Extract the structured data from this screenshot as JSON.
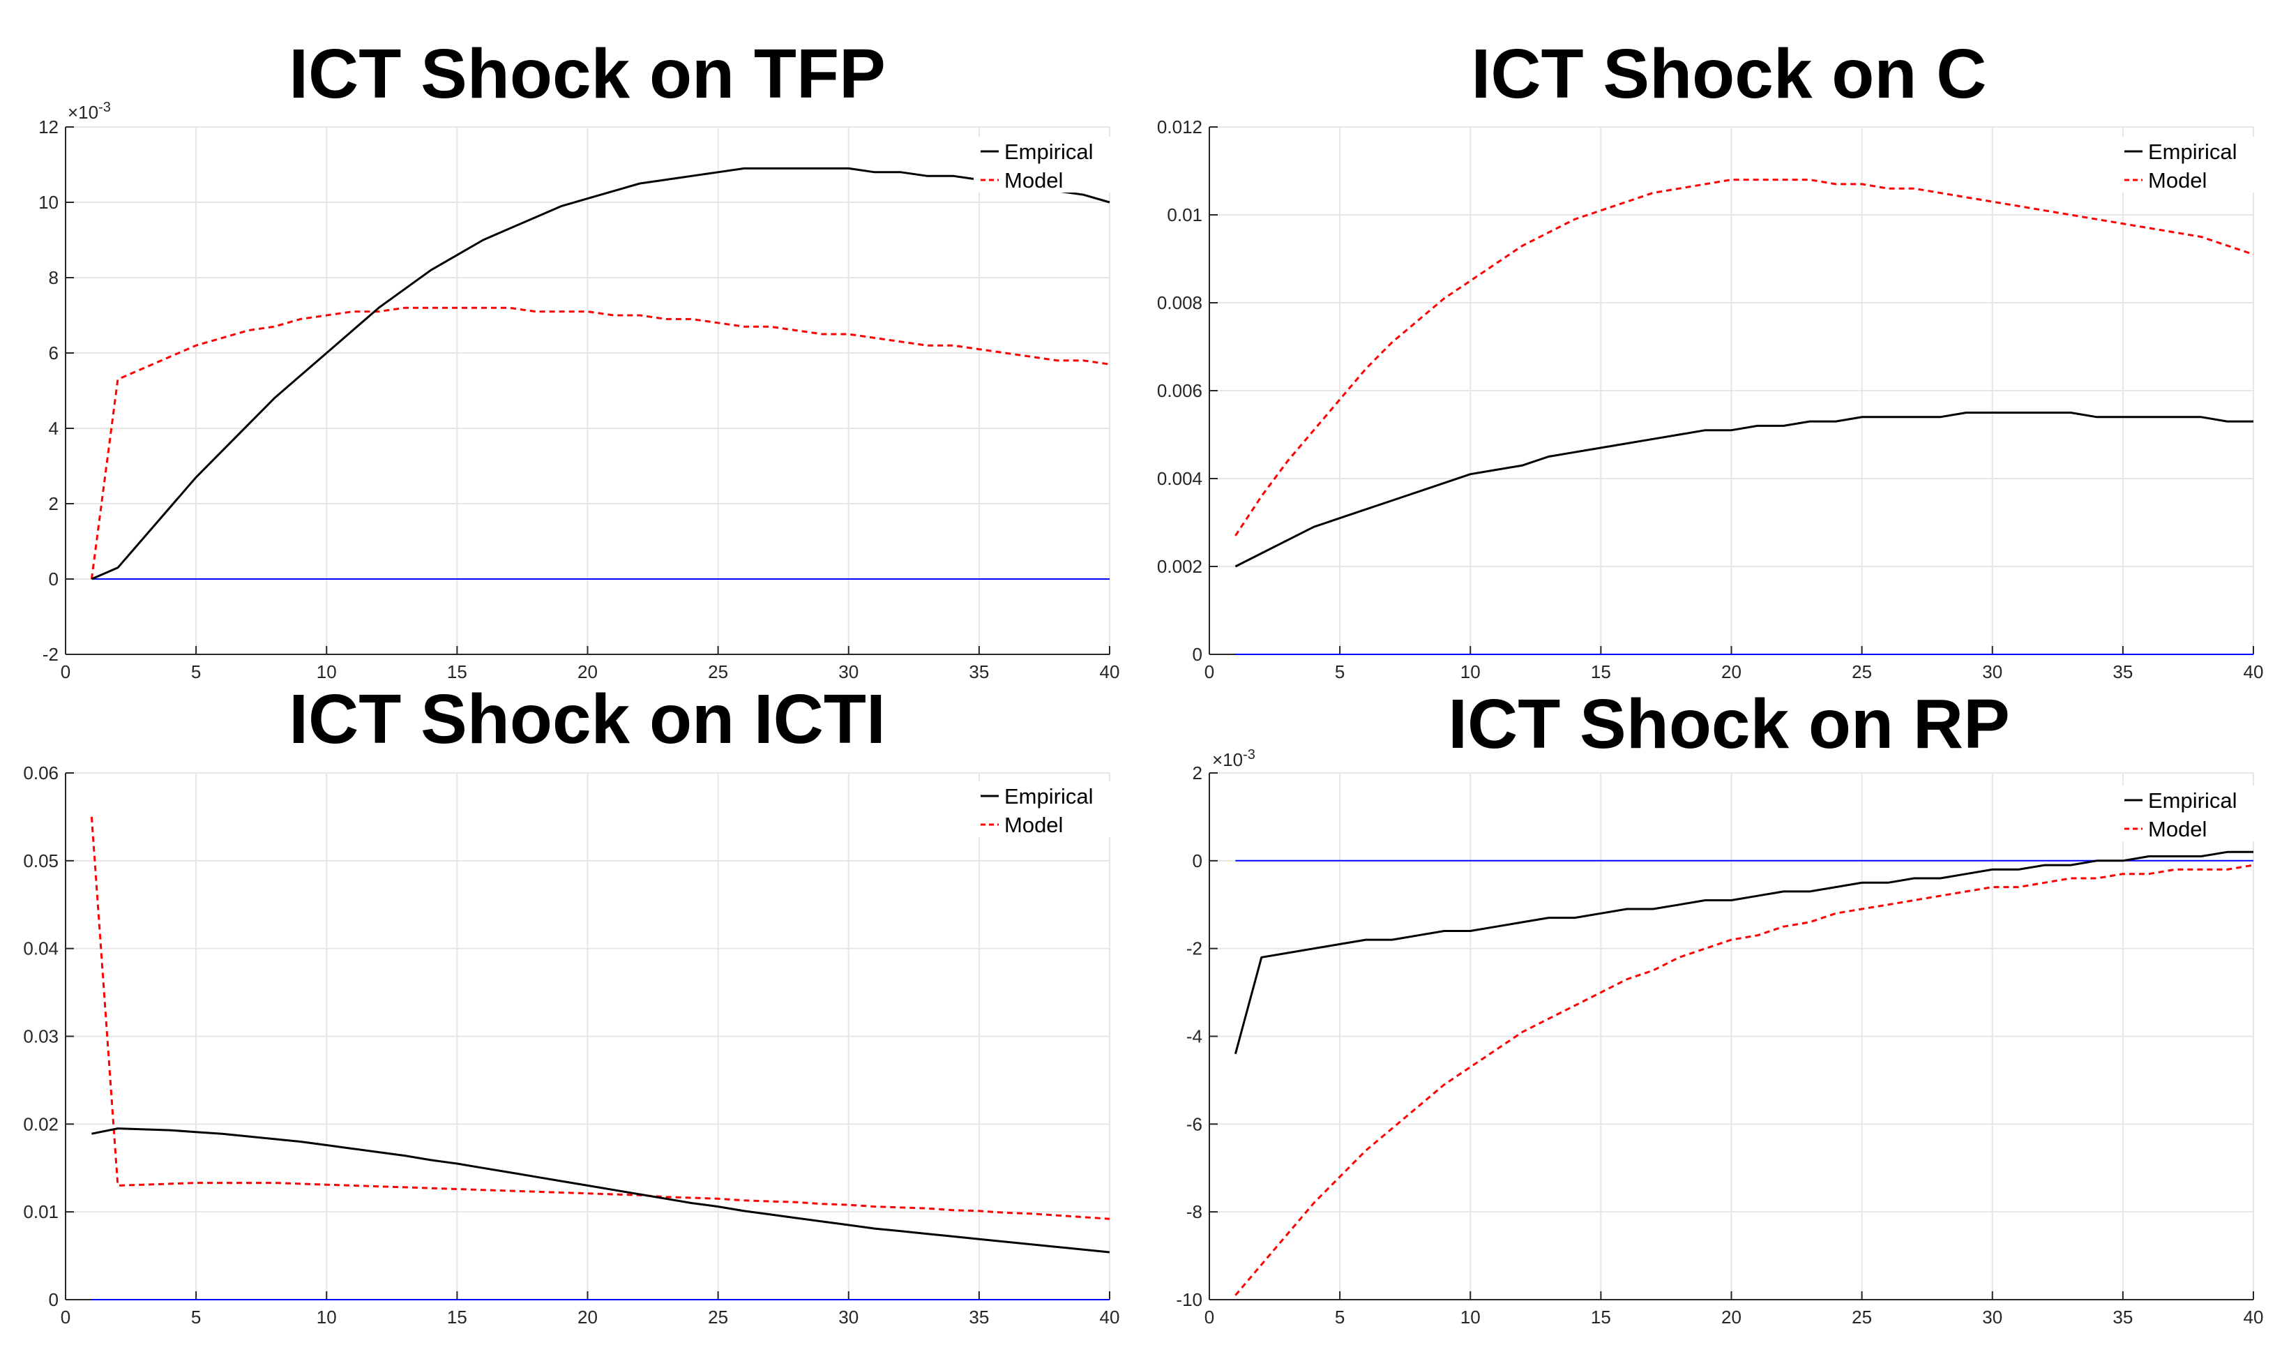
{
  "chart_data": [
    {
      "type": "line",
      "title": "ICT Shock on TFP",
      "xlim": [
        0,
        40
      ],
      "ylim": [
        -0.002,
        0.012
      ],
      "xticks": [
        "0",
        "5",
        "10",
        "15",
        "20",
        "25",
        "30",
        "35",
        "40"
      ],
      "yticks": [
        "-2",
        "0",
        "2",
        "4",
        "6",
        "8",
        "10",
        "12"
      ],
      "y_exponent_label": "×10",
      "y_exponent_power": "-3",
      "grid": true,
      "legend_position": "top-right",
      "series": [
        {
          "name": "Empirical",
          "color": "#000000",
          "style": "solid",
          "x": [
            1,
            2,
            3,
            4,
            5,
            6,
            7,
            8,
            9,
            10,
            11,
            12,
            13,
            14,
            15,
            16,
            17,
            18,
            19,
            20,
            21,
            22,
            23,
            24,
            25,
            26,
            27,
            28,
            29,
            30,
            31,
            32,
            33,
            34,
            35,
            36,
            37,
            38,
            39,
            40
          ],
          "y": [
            0.0,
            0.0003,
            0.0011,
            0.0019,
            0.0027,
            0.0034,
            0.0041,
            0.0048,
            0.0054,
            0.006,
            0.0066,
            0.0072,
            0.0077,
            0.0082,
            0.0086,
            0.009,
            0.0093,
            0.0096,
            0.0099,
            0.0101,
            0.0103,
            0.0105,
            0.0106,
            0.0107,
            0.0108,
            0.0109,
            0.0109,
            0.0109,
            0.0109,
            0.0109,
            0.0108,
            0.0108,
            0.0107,
            0.0107,
            0.0106,
            0.0105,
            0.0104,
            0.0103,
            0.0102,
            0.01
          ]
        },
        {
          "name": "Model",
          "color": "#ff0000",
          "style": "dashed",
          "x": [
            1,
            2,
            3,
            4,
            5,
            6,
            7,
            8,
            9,
            10,
            11,
            12,
            13,
            14,
            15,
            16,
            17,
            18,
            19,
            20,
            21,
            22,
            23,
            24,
            25,
            26,
            27,
            28,
            29,
            30,
            31,
            32,
            33,
            34,
            35,
            36,
            37,
            38,
            39,
            40
          ],
          "y": [
            0.0,
            0.0053,
            0.0056,
            0.0059,
            0.0062,
            0.0064,
            0.0066,
            0.0067,
            0.0069,
            0.007,
            0.0071,
            0.0071,
            0.0072,
            0.0072,
            0.0072,
            0.0072,
            0.0072,
            0.0071,
            0.0071,
            0.0071,
            0.007,
            0.007,
            0.0069,
            0.0069,
            0.0068,
            0.0067,
            0.0067,
            0.0066,
            0.0065,
            0.0065,
            0.0064,
            0.0063,
            0.0062,
            0.0062,
            0.0061,
            0.006,
            0.0059,
            0.0058,
            0.0058,
            0.0057
          ]
        },
        {
          "name": "",
          "color": "#0000ff",
          "style": "solid",
          "x": [
            1,
            40
          ],
          "y": [
            0,
            0
          ]
        }
      ]
    },
    {
      "type": "line",
      "title": "ICT Shock on C",
      "xlim": [
        0,
        40
      ],
      "ylim": [
        0,
        0.012
      ],
      "xticks": [
        "0",
        "5",
        "10",
        "15",
        "20",
        "25",
        "30",
        "35",
        "40"
      ],
      "yticks": [
        "0",
        "0.002",
        "0.004",
        "0.006",
        "0.008",
        "0.01",
        "0.012"
      ],
      "grid": true,
      "legend_position": "top-right",
      "series": [
        {
          "name": "Empirical",
          "color": "#000000",
          "style": "solid",
          "x": [
            1,
            2,
            3,
            4,
            5,
            6,
            7,
            8,
            9,
            10,
            11,
            12,
            13,
            14,
            15,
            16,
            17,
            18,
            19,
            20,
            21,
            22,
            23,
            24,
            25,
            26,
            27,
            28,
            29,
            30,
            31,
            32,
            33,
            34,
            35,
            36,
            37,
            38,
            39,
            40
          ],
          "y": [
            0.002,
            0.0023,
            0.0026,
            0.0029,
            0.0031,
            0.0033,
            0.0035,
            0.0037,
            0.0039,
            0.0041,
            0.0042,
            0.0043,
            0.0045,
            0.0046,
            0.0047,
            0.0048,
            0.0049,
            0.005,
            0.0051,
            0.0051,
            0.0052,
            0.0052,
            0.0053,
            0.0053,
            0.0054,
            0.0054,
            0.0054,
            0.0054,
            0.0055,
            0.0055,
            0.0055,
            0.0055,
            0.0055,
            0.0054,
            0.0054,
            0.0054,
            0.0054,
            0.0054,
            0.0053,
            0.0053
          ]
        },
        {
          "name": "Model",
          "color": "#ff0000",
          "style": "dashed",
          "x": [
            1,
            2,
            3,
            4,
            5,
            6,
            7,
            8,
            9,
            10,
            11,
            12,
            13,
            14,
            15,
            16,
            17,
            18,
            19,
            20,
            21,
            22,
            23,
            24,
            25,
            26,
            27,
            28,
            29,
            30,
            31,
            32,
            33,
            34,
            35,
            36,
            37,
            38,
            39,
            40
          ],
          "y": [
            0.0027,
            0.0036,
            0.0044,
            0.0051,
            0.0058,
            0.0065,
            0.0071,
            0.0076,
            0.0081,
            0.0085,
            0.0089,
            0.0093,
            0.0096,
            0.0099,
            0.0101,
            0.0103,
            0.0105,
            0.0106,
            0.0107,
            0.0108,
            0.0108,
            0.0108,
            0.0108,
            0.0107,
            0.0107,
            0.0106,
            0.0106,
            0.0105,
            0.0104,
            0.0103,
            0.0102,
            0.0101,
            0.01,
            0.0099,
            0.0098,
            0.0097,
            0.0096,
            0.0095,
            0.0093,
            0.0091
          ]
        },
        {
          "name": "",
          "color": "#0000ff",
          "style": "solid",
          "x": [
            1,
            40
          ],
          "y": [
            0,
            0
          ]
        }
      ]
    },
    {
      "type": "line",
      "title": "ICT Shock on ICTI",
      "xlim": [
        0,
        40
      ],
      "ylim": [
        0,
        0.06
      ],
      "xticks": [
        "0",
        "5",
        "10",
        "15",
        "20",
        "25",
        "30",
        "35",
        "40"
      ],
      "yticks": [
        "0",
        "0.01",
        "0.02",
        "0.03",
        "0.04",
        "0.05",
        "0.06"
      ],
      "grid": true,
      "legend_position": "top-right",
      "series": [
        {
          "name": "Empirical",
          "color": "#000000",
          "style": "solid",
          "x": [
            1,
            2,
            3,
            4,
            5,
            6,
            7,
            8,
            9,
            10,
            11,
            12,
            13,
            14,
            15,
            16,
            17,
            18,
            19,
            20,
            21,
            22,
            23,
            24,
            25,
            26,
            27,
            28,
            29,
            30,
            31,
            32,
            33,
            34,
            35,
            36,
            37,
            38,
            39,
            40
          ],
          "y": [
            0.0189,
            0.0195,
            0.0194,
            0.0193,
            0.0191,
            0.0189,
            0.0186,
            0.0183,
            0.018,
            0.0176,
            0.0172,
            0.0168,
            0.0164,
            0.0159,
            0.0155,
            0.015,
            0.0145,
            0.014,
            0.0135,
            0.013,
            0.0125,
            0.012,
            0.0115,
            0.011,
            0.0106,
            0.0101,
            0.0097,
            0.0093,
            0.0089,
            0.0085,
            0.0081,
            0.0078,
            0.0075,
            0.0072,
            0.0069,
            0.0066,
            0.0063,
            0.006,
            0.0057,
            0.0054
          ]
        },
        {
          "name": "Model",
          "color": "#ff0000",
          "style": "dashed",
          "x": [
            1,
            2,
            3,
            4,
            5,
            6,
            7,
            8,
            9,
            10,
            11,
            12,
            13,
            14,
            15,
            16,
            17,
            18,
            19,
            20,
            21,
            22,
            23,
            24,
            25,
            26,
            27,
            28,
            29,
            30,
            31,
            32,
            33,
            34,
            35,
            36,
            37,
            38,
            39,
            40
          ],
          "y": [
            0.055,
            0.013,
            0.0131,
            0.0132,
            0.0133,
            0.0133,
            0.0133,
            0.0133,
            0.0132,
            0.0131,
            0.013,
            0.0129,
            0.0128,
            0.0127,
            0.0126,
            0.0125,
            0.0124,
            0.0123,
            0.0122,
            0.0121,
            0.012,
            0.0119,
            0.0117,
            0.0116,
            0.0115,
            0.0113,
            0.0112,
            0.0111,
            0.0109,
            0.0108,
            0.0106,
            0.0105,
            0.0104,
            0.0102,
            0.0101,
            0.0099,
            0.0098,
            0.0096,
            0.0094,
            0.0092
          ]
        },
        {
          "name": "",
          "color": "#0000ff",
          "style": "solid",
          "x": [
            1,
            40
          ],
          "y": [
            0,
            0
          ]
        }
      ]
    },
    {
      "type": "line",
      "title": "ICT Shock on RP",
      "xlim": [
        0,
        40
      ],
      "ylim": [
        -0.01,
        0.002
      ],
      "xticks": [
        "0",
        "5",
        "10",
        "15",
        "20",
        "25",
        "30",
        "35",
        "40"
      ],
      "yticks": [
        "-10",
        "-8",
        "-6",
        "-4",
        "-2",
        "0",
        "2"
      ],
      "y_exponent_label": "×10",
      "y_exponent_power": "-3",
      "grid": true,
      "legend_position": "top-right",
      "series": [
        {
          "name": "Empirical",
          "color": "#000000",
          "style": "solid",
          "x": [
            1,
            2,
            3,
            4,
            5,
            6,
            7,
            8,
            9,
            10,
            11,
            12,
            13,
            14,
            15,
            16,
            17,
            18,
            19,
            20,
            21,
            22,
            23,
            24,
            25,
            26,
            27,
            28,
            29,
            30,
            31,
            32,
            33,
            34,
            35,
            36,
            37,
            38,
            39,
            40
          ],
          "y": [
            -0.0044,
            -0.0022,
            -0.0021,
            -0.002,
            -0.0019,
            -0.0018,
            -0.0018,
            -0.0017,
            -0.0016,
            -0.0016,
            -0.0015,
            -0.0014,
            -0.0013,
            -0.0013,
            -0.0012,
            -0.0011,
            -0.0011,
            -0.001,
            -0.0009,
            -0.0009,
            -0.0008,
            -0.0007,
            -0.0007,
            -0.0006,
            -0.0005,
            -0.0005,
            -0.0004,
            -0.0004,
            -0.0003,
            -0.0002,
            -0.0002,
            -0.0001,
            -0.0001,
            0.0,
            0.0,
            0.0001,
            0.0001,
            0.0001,
            0.0002,
            0.0002
          ]
        },
        {
          "name": "Model",
          "color": "#ff0000",
          "style": "dashed",
          "x": [
            1,
            2,
            3,
            4,
            5,
            6,
            7,
            8,
            9,
            10,
            11,
            12,
            13,
            14,
            15,
            16,
            17,
            18,
            19,
            20,
            21,
            22,
            23,
            24,
            25,
            26,
            27,
            28,
            29,
            30,
            31,
            32,
            33,
            34,
            35,
            36,
            37,
            38,
            39,
            40
          ],
          "y": [
            -0.0099,
            -0.0092,
            -0.0085,
            -0.0078,
            -0.0072,
            -0.0066,
            -0.0061,
            -0.0056,
            -0.0051,
            -0.0047,
            -0.0043,
            -0.0039,
            -0.0036,
            -0.0033,
            -0.003,
            -0.0027,
            -0.0025,
            -0.0022,
            -0.002,
            -0.0018,
            -0.0017,
            -0.0015,
            -0.0014,
            -0.0012,
            -0.0011,
            -0.001,
            -0.0009,
            -0.0008,
            -0.0007,
            -0.0006,
            -0.0006,
            -0.0005,
            -0.0004,
            -0.0004,
            -0.0003,
            -0.0003,
            -0.0002,
            -0.0002,
            -0.0002,
            -0.0001
          ]
        },
        {
          "name": "",
          "color": "#0000ff",
          "style": "solid",
          "x": [
            1,
            40
          ],
          "y": [
            0,
            0
          ]
        }
      ]
    }
  ]
}
